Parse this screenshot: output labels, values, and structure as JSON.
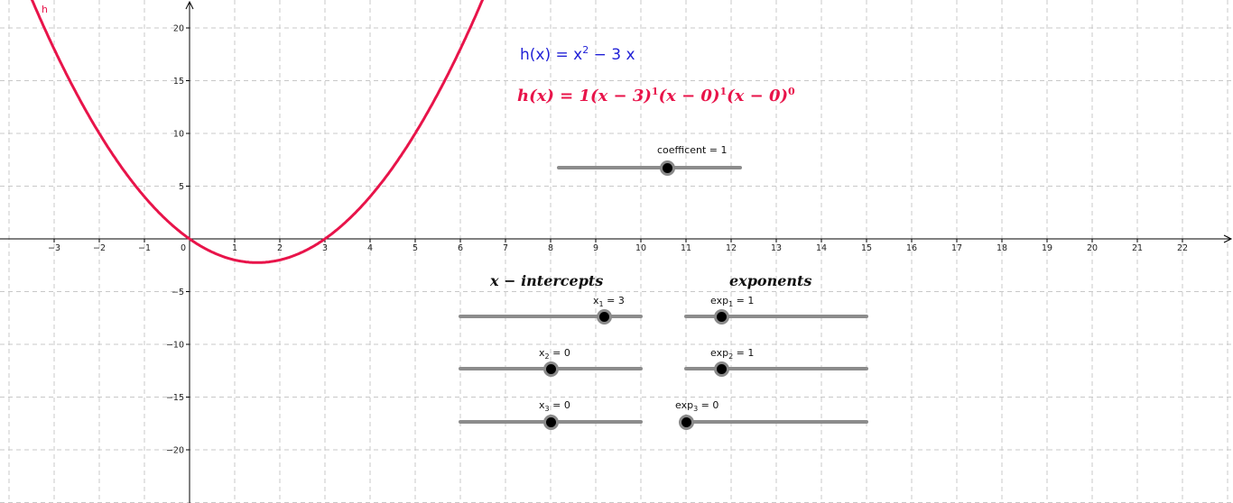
{
  "equations": {
    "blue": {
      "lhs": "h(x) = x",
      "exp": "2",
      "rhs": " − 3 x"
    },
    "red": {
      "lhs": "h(x) = 1(x − 3)",
      "e1": "1",
      "mid1": "(x − 0)",
      "e2": "1",
      "mid2": "(x − 0)",
      "e3": "0"
    }
  },
  "headings": {
    "intercepts": "x − intercepts",
    "exponents": "exponents"
  },
  "curve_label": "h",
  "sliders": {
    "coefficient": {
      "label": "coefficent = 1",
      "value": 1
    },
    "x1": {
      "name": "x",
      "sub": "1",
      "text": " = 3",
      "value": 3
    },
    "x2": {
      "name": "x",
      "sub": "2",
      "text": " = 0",
      "value": 0
    },
    "x3": {
      "name": "x",
      "sub": "3",
      "text": " = 0",
      "value": 0
    },
    "exp1": {
      "name": "exp",
      "sub": "1",
      "text": " = 1",
      "value": 1
    },
    "exp2": {
      "name": "exp",
      "sub": "2",
      "text": " = 1",
      "value": 1
    },
    "exp3": {
      "name": "exp",
      "sub": "3",
      "text": " = 0",
      "value": 0
    }
  },
  "colors": {
    "curve": "#e8144a",
    "blue_text": "#1f1fd6",
    "grid": "#c8c8c8"
  },
  "chart_data": {
    "type": "line",
    "function": "h(x) = x^2 - 3x",
    "xlim": [
      -4,
      23
    ],
    "ylim": [
      -24,
      23
    ],
    "x_ticks": [
      -3,
      -2,
      -1,
      0,
      1,
      2,
      3,
      4,
      5,
      6,
      7,
      8,
      9,
      10,
      11,
      12,
      13,
      14,
      15,
      16,
      17,
      18,
      19,
      20,
      21,
      22
    ],
    "y_ticks": [
      -20,
      -15,
      -10,
      -5,
      5,
      10,
      15,
      20
    ],
    "grid": true,
    "series": [
      {
        "name": "h",
        "x": [
          -3.4,
          -3,
          -2,
          -1,
          0,
          1,
          1.5,
          2,
          3,
          4,
          5,
          6.2
        ],
        "y": [
          21.76,
          18,
          10,
          4,
          0,
          -2,
          -2.25,
          -2,
          0,
          4,
          10,
          19.84
        ]
      }
    ]
  }
}
